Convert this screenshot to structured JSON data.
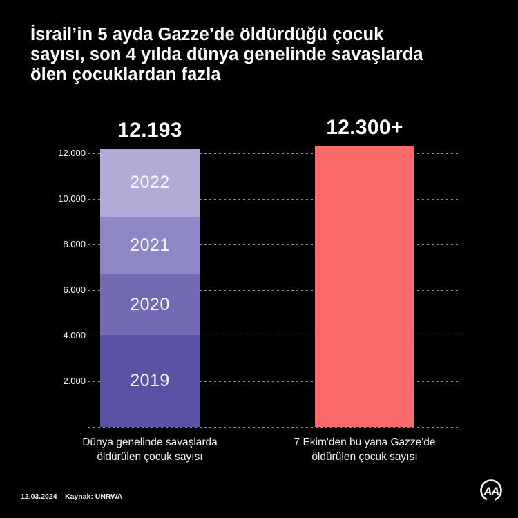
{
  "title": {
    "full": "İsrail’in 5 ayda Gazze’de öldürdüğü çocuk sayısı, son 4 yılda dünya genelinde savaşlarda ölen çocuklardan fazla",
    "lines": [
      "İsrail’in 5 ayda Gazze’de öldürdüğü çocuk",
      "sayısı, son 4 yılda dünya genelinde savaşlarda",
      "ölen çocuklardan fazla"
    ]
  },
  "chart_data": {
    "type": "bar",
    "subtype": "stacked-vertical",
    "title": "İsrail’in 5 ayda Gazze’de öldürdüğü çocuk sayısı, son 4 yılda dünya genelinde savaşlarda ölen çocuklardan fazla",
    "xlabel": "",
    "ylabel": "",
    "ylim": [
      0,
      12424
    ],
    "grid": "horizontal-dashed",
    "yticks": [
      {
        "label": "",
        "value": 0
      },
      {
        "label": "2.000",
        "value": 2000
      },
      {
        "label": "4.000",
        "value": 4000
      },
      {
        "label": "6.000",
        "value": 6000
      },
      {
        "label": "8.000",
        "value": 8000
      },
      {
        "label": "10.000",
        "value": 10000
      },
      {
        "label": "12.000",
        "value": 12000
      }
    ],
    "bars": [
      {
        "name": "world-wars-children",
        "total_label": "12.193",
        "total_value": 12193,
        "label_lines": [
          "Dünya genelinde savaşlarda",
          "öldürülen çocuk sayısı"
        ],
        "segments": [
          {
            "year": "2019",
            "value": 4019,
            "color": "#5a52a5"
          },
          {
            "year": "2020",
            "value": 2674,
            "color": "#726bb3"
          },
          {
            "year": "2021",
            "value": 2515,
            "color": "#8e87c5"
          },
          {
            "year": "2022",
            "value": 2985,
            "color": "#b2abd8"
          }
        ]
      },
      {
        "name": "gaza-children",
        "total_label": "12.300+",
        "total_value": 12300,
        "label_lines": [
          "7 Ekim'den bu yana Gazze'de",
          "öldürülen çocuk sayısı"
        ],
        "segments": [
          {
            "year": "",
            "value": 12300,
            "color": "#fc6b6b"
          }
        ]
      }
    ],
    "colors": {
      "background": "#000000",
      "grid": "#8e8e8e",
      "text": "#ffffff",
      "gaza_bar": "#fc6b6b",
      "world_bar_2019": "#5a52a5",
      "world_bar_2020": "#726bb3",
      "world_bar_2021": "#8e87c5",
      "world_bar_2022": "#b2abd8"
    }
  },
  "footer": {
    "date": "12.03.2024",
    "source": "Kaynak: UNRWA",
    "logo": "aa-anadolu-agency-logo"
  }
}
